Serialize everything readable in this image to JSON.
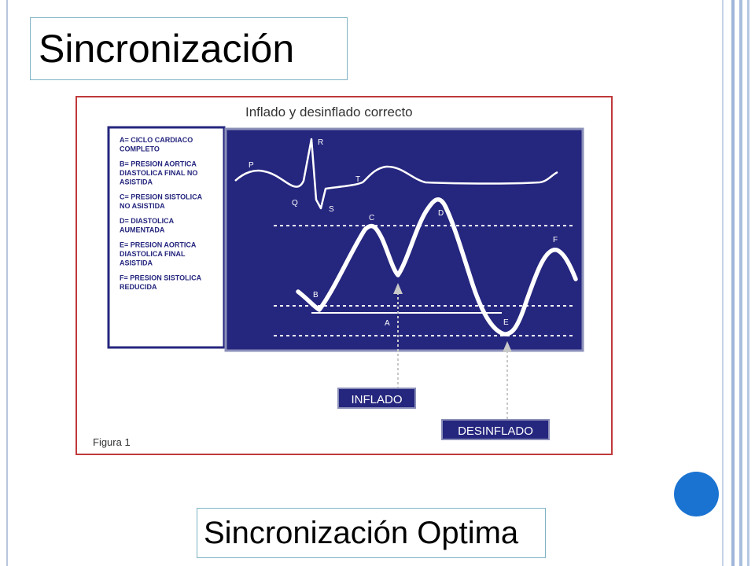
{
  "slide": {
    "title": "Sincronización",
    "subtitle": "Sincronización Optima"
  },
  "figure": {
    "heading": "Inflado y desinflado correcto",
    "caption": "Figura 1",
    "legend": [
      [
        "A= CICLO CARDIACO",
        "COMPLETO"
      ],
      [
        "B= PRESION AORTICA",
        "DIASTOLICA FINAL NO",
        "ASISTIDA"
      ],
      [
        "C= PRESION SISTOLICA",
        " NO ASISTIDA"
      ],
      [
        "D= DIASTOLICA",
        "AUMENTADA"
      ],
      [
        "E= PRESION AORTICA",
        "DIASTOLICA FINAL",
        "ASISTIDA"
      ],
      [
        "F= PRESION SISTOLICA",
        "REDUCIDA"
      ]
    ],
    "ecg_labels": {
      "P": "P",
      "Q": "Q",
      "R": "R",
      "S": "S",
      "T": "T"
    },
    "wave_labels": {
      "A": "A",
      "B": "B",
      "C": "C",
      "D": "D",
      "E": "E",
      "F": "F"
    },
    "markers": {
      "inflate": "INFLADO",
      "deflate": "DESINFLADO"
    }
  },
  "colors": {
    "panel": "#25267e",
    "frame": "#c0393b",
    "accent_dot": "#1a73d1",
    "wave": "#ffffff",
    "marker_box": "#25267e"
  }
}
